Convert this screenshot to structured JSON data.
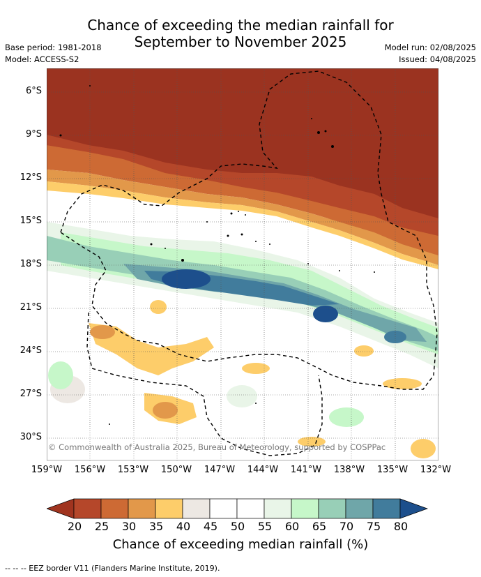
{
  "title": {
    "line1": "Chance of exceeding the median rainfall for",
    "line2": "September to November 2025"
  },
  "meta": {
    "base_period": "Base period: 1981-2018",
    "model": "Model: ACCESS-S2",
    "model_run": "Model run: 02/08/2025",
    "issued": "Issued: 04/08/2025"
  },
  "map": {
    "copyright": "© Commonwealth of Australia 2025, Bureau of Meteorology, supported by COSPPac",
    "lat_labels": [
      "6°S",
      "9°S",
      "12°S",
      "15°S",
      "18°S",
      "21°S",
      "24°S",
      "27°S",
      "30°S"
    ],
    "lon_labels": [
      "159°W",
      "156°W",
      "153°W",
      "150°W",
      "147°W",
      "144°W",
      "141°W",
      "138°W",
      "135°W",
      "132°W"
    ]
  },
  "colorbar": {
    "ticks": [
      "20",
      "25",
      "30",
      "35",
      "40",
      "45",
      "50",
      "55",
      "60",
      "65",
      "70",
      "75",
      "80"
    ],
    "colors": [
      "#a0341f",
      "#b5472a",
      "#cd6a34",
      "#e2984a",
      "#fdcd6a",
      "#ede8e3",
      "#ffffff",
      "#ffffff",
      "#e9f5e8",
      "#c6f7c9",
      "#98cfb7",
      "#6fa6a9",
      "#417c9c",
      "#1d4f8c"
    ],
    "title": "Chance of exceeding median rainfall (%)"
  },
  "footnote": "--  --  -- EEZ border V11 (Flanders Marine Institute, 2019)."
}
